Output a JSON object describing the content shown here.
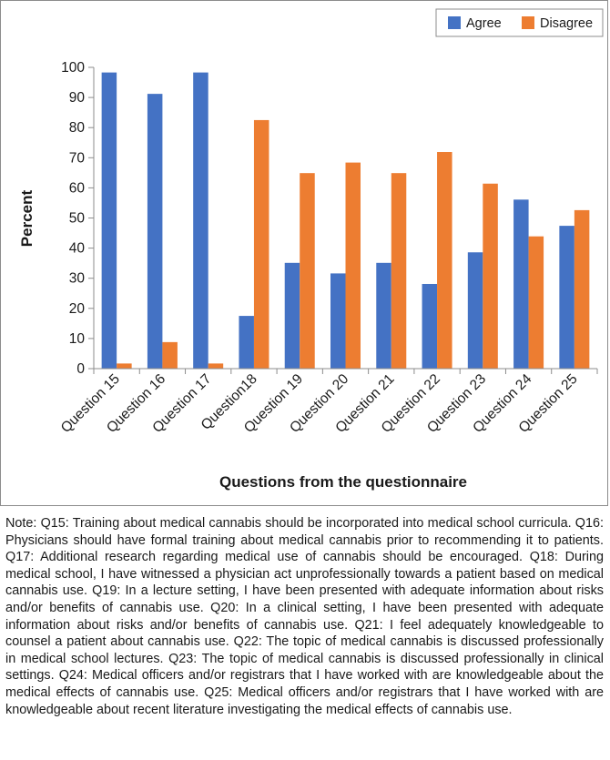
{
  "chart_data": {
    "type": "bar",
    "title": "",
    "xlabel": "Questions from the questionnaire",
    "ylabel": "Percent",
    "ylim": [
      0,
      100
    ],
    "yticks": [
      0,
      10,
      20,
      30,
      40,
      50,
      60,
      70,
      80,
      90,
      100
    ],
    "categories": [
      "Question 15",
      "Question 16",
      "Question 17",
      "Question18",
      "Question 19",
      "Question 20",
      "Question 21",
      "Question 22",
      "Question 23",
      "Question 24",
      "Question 25"
    ],
    "series": [
      {
        "name": "Agree",
        "color": "#4472c4",
        "values": [
          98.3,
          91.2,
          98.3,
          17.5,
          35.1,
          31.6,
          35.1,
          28.1,
          38.6,
          56.1,
          47.4
        ]
      },
      {
        "name": "Disagree",
        "color": "#ed7d31",
        "values": [
          1.7,
          8.8,
          1.7,
          82.5,
          64.9,
          68.4,
          64.9,
          71.9,
          61.4,
          43.9,
          52.6
        ]
      }
    ],
    "legend_position": "top-right",
    "grid": false
  },
  "note": "Note: Q15: Training about medical cannabis should be incorporated into medical school curricula. Q16: Physicians should have formal training about medical cannabis prior to recommending it to patients. Q17: Additional research regarding medical use of cannabis should be encouraged. Q18: During medical school, I have witnessed a physician act unprofessionally towards a patient based on medical cannabis use. Q19: In a lecture setting, I have been presented with adequate information about risks and/or benefits of cannabis use. Q20: In a clinical setting, I have been presented with adequate information about risks and/or benefits of cannabis use. Q21: I feel adequately knowledgeable to counsel a patient about cannabis use. Q22: The topic of medical cannabis is discussed professionally in medical school lectures. Q23: The topic of medical cannabis is discussed professionally in clinical settings. Q24: Medical officers and/or registrars that I have worked with are knowledgeable about the medical effects of cannabis use. Q25: Medical officers and/or registrars that I have worked with are knowledgeable about recent literature investigating the medical effects of cannabis use."
}
